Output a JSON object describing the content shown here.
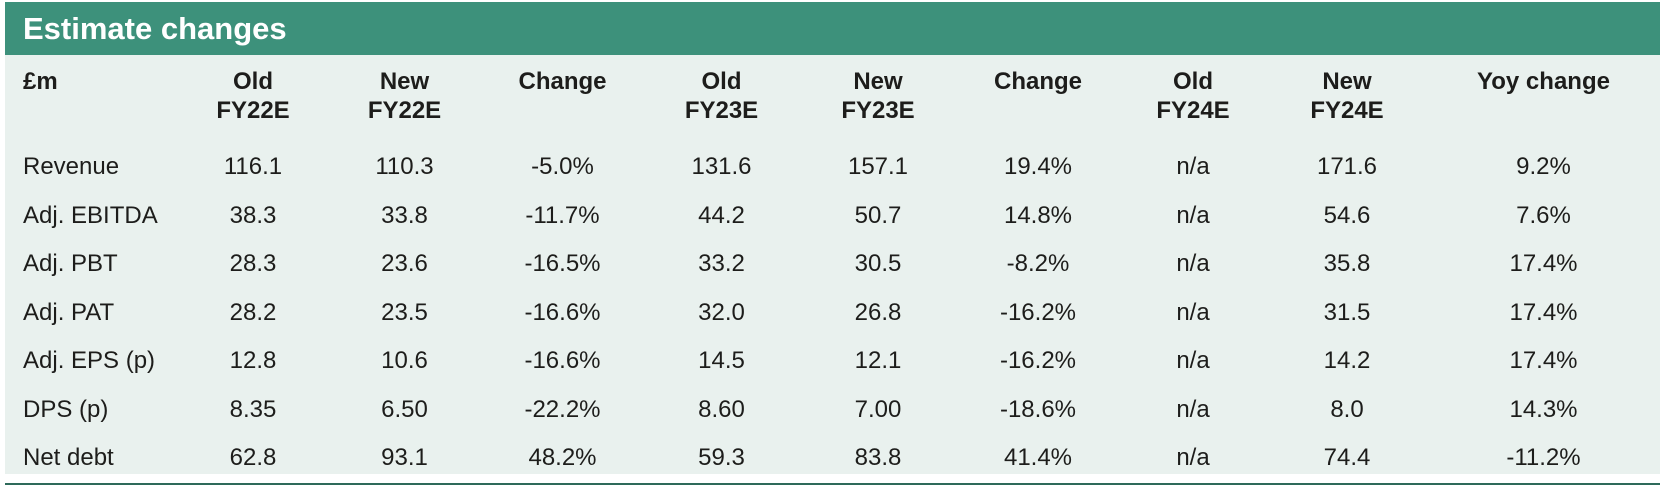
{
  "title": "Estimate changes",
  "colors": {
    "header_bg": "#3d917b",
    "table_bg": "#e9f1ee",
    "text": "#1d1d1b"
  },
  "table": {
    "headers": [
      {
        "line1": "£m",
        "line2": ""
      },
      {
        "line1": "Old",
        "line2": "FY22E"
      },
      {
        "line1": "New",
        "line2": "FY22E"
      },
      {
        "line1": "Change",
        "line2": ""
      },
      {
        "line1": "Old",
        "line2": "FY23E"
      },
      {
        "line1": "New",
        "line2": "FY23E"
      },
      {
        "line1": "Change",
        "line2": ""
      },
      {
        "line1": "Old",
        "line2": "FY24E"
      },
      {
        "line1": "New",
        "line2": "FY24E"
      },
      {
        "line1": "Yoy change",
        "line2": ""
      }
    ],
    "rows": [
      [
        "Revenue",
        "116.1",
        "110.3",
        "-5.0%",
        "131.6",
        "157.1",
        "19.4%",
        "n/a",
        "171.6",
        "9.2%"
      ],
      [
        "Adj. EBITDA",
        "38.3",
        "33.8",
        "-11.7%",
        "44.2",
        "50.7",
        "14.8%",
        "n/a",
        "54.6",
        "7.6%"
      ],
      [
        "Adj. PBT",
        "28.3",
        "23.6",
        "-16.5%",
        "33.2",
        "30.5",
        "-8.2%",
        "n/a",
        "35.8",
        "17.4%"
      ],
      [
        "Adj. PAT",
        "28.2",
        "23.5",
        "-16.6%",
        "32.0",
        "26.8",
        "-16.2%",
        "n/a",
        "31.5",
        "17.4%"
      ],
      [
        "Adj. EPS (p)",
        "12.8",
        "10.6",
        "-16.6%",
        "14.5",
        "12.1",
        "-16.2%",
        "n/a",
        "14.2",
        "17.4%"
      ],
      [
        "DPS (p)",
        "8.35",
        "6.50",
        "-22.2%",
        "8.60",
        "7.00",
        "-18.6%",
        "n/a",
        "8.0",
        "14.3%"
      ],
      [
        "Net debt",
        "62.8",
        "93.1",
        "48.2%",
        "59.3",
        "83.8",
        "41.4%",
        "n/a",
        "74.4",
        "-11.2%"
      ]
    ]
  }
}
